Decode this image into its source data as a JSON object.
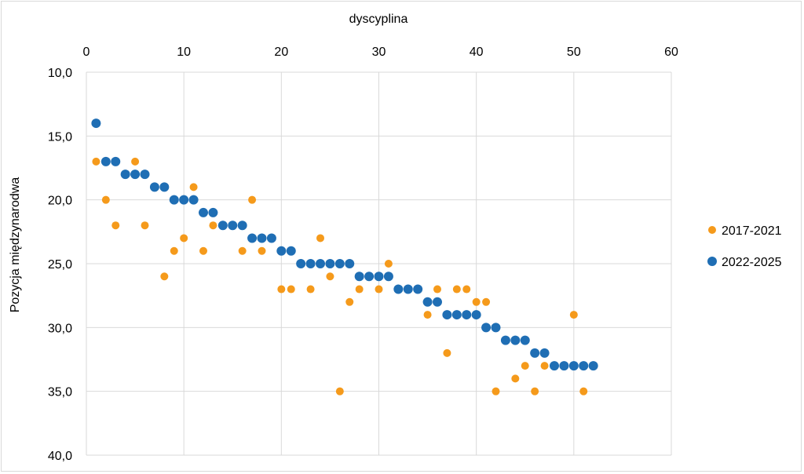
{
  "chart_data": {
    "type": "scatter",
    "xlabel": "dyscyplina",
    "ylabel": "Pozycja międzynarodwa",
    "xlim": [
      0,
      60
    ],
    "ylim": [
      10,
      40
    ],
    "y_reversed": true,
    "x_axis_position": "top",
    "x_ticks": [
      "0",
      "10",
      "20",
      "30",
      "40",
      "50",
      "60"
    ],
    "y_ticks": [
      "10,0",
      "15,0",
      "20,0",
      "25,0",
      "30,0",
      "35,0",
      "40,0"
    ],
    "grid": true,
    "legend_position": "right",
    "series": [
      {
        "name": "2017-2021",
        "color": "#f59a1b",
        "points": [
          [
            1,
            17
          ],
          [
            2,
            20
          ],
          [
            3,
            22
          ],
          [
            5,
            17
          ],
          [
            6,
            22
          ],
          [
            8,
            26
          ],
          [
            9,
            24
          ],
          [
            10,
            23
          ],
          [
            11,
            19
          ],
          [
            12,
            24
          ],
          [
            13,
            22
          ],
          [
            16,
            24
          ],
          [
            17,
            20
          ],
          [
            18,
            24
          ],
          [
            20,
            27
          ],
          [
            21,
            27
          ],
          [
            23,
            27
          ],
          [
            24,
            23
          ],
          [
            25,
            26
          ],
          [
            26,
            35
          ],
          [
            27,
            28
          ],
          [
            28,
            27
          ],
          [
            30,
            27
          ],
          [
            31,
            25
          ],
          [
            35,
            29
          ],
          [
            36,
            27
          ],
          [
            37,
            32
          ],
          [
            38,
            27
          ],
          [
            39,
            27
          ],
          [
            40,
            28
          ],
          [
            41,
            28
          ],
          [
            42,
            35
          ],
          [
            44,
            34
          ],
          [
            45,
            33
          ],
          [
            46,
            35
          ],
          [
            47,
            33
          ],
          [
            50,
            29
          ],
          [
            51,
            35
          ]
        ]
      },
      {
        "name": "2022-2025",
        "color": "#1f6eb4",
        "points": [
          [
            1,
            14
          ],
          [
            2,
            17
          ],
          [
            3,
            17
          ],
          [
            4,
            18
          ],
          [
            5,
            18
          ],
          [
            6,
            18
          ],
          [
            7,
            19
          ],
          [
            8,
            19
          ],
          [
            9,
            20
          ],
          [
            10,
            20
          ],
          [
            11,
            20
          ],
          [
            12,
            21
          ],
          [
            13,
            21
          ],
          [
            14,
            22
          ],
          [
            15,
            22
          ],
          [
            16,
            22
          ],
          [
            17,
            23
          ],
          [
            18,
            23
          ],
          [
            19,
            23
          ],
          [
            20,
            24
          ],
          [
            21,
            24
          ],
          [
            22,
            25
          ],
          [
            23,
            25
          ],
          [
            24,
            25
          ],
          [
            25,
            25
          ],
          [
            26,
            25
          ],
          [
            27,
            25
          ],
          [
            28,
            26
          ],
          [
            29,
            26
          ],
          [
            30,
            26
          ],
          [
            31,
            26
          ],
          [
            32,
            27
          ],
          [
            33,
            27
          ],
          [
            34,
            27
          ],
          [
            35,
            28
          ],
          [
            36,
            28
          ],
          [
            37,
            29
          ],
          [
            38,
            29
          ],
          [
            39,
            29
          ],
          [
            40,
            29
          ],
          [
            41,
            30
          ],
          [
            42,
            30
          ],
          [
            43,
            31
          ],
          [
            44,
            31
          ],
          [
            45,
            31
          ],
          [
            46,
            32
          ],
          [
            47,
            32
          ],
          [
            48,
            33
          ],
          [
            49,
            33
          ],
          [
            50,
            33
          ],
          [
            51,
            33
          ],
          [
            52,
            33
          ]
        ]
      }
    ]
  }
}
